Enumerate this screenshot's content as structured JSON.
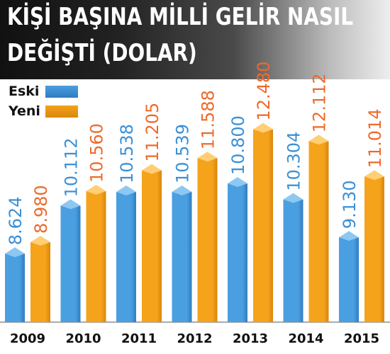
{
  "title": {
    "line1": "KİŞİ BAŞINA MİLLİ GELİR NASIL",
    "line2": "DEĞİŞTİ (DOLAR)"
  },
  "colors": {
    "eski": "#4a9fe0",
    "eski_dark": "#2f7cc0",
    "yeni": "#f5a31b",
    "yeni_dark": "#d9860c",
    "label_eski": "#3a90d6",
    "label_yeni": "#ee6a2b"
  },
  "chart_data": {
    "type": "bar",
    "categories": [
      "2009",
      "2010",
      "2011",
      "2012",
      "2013",
      "2014",
      "2015"
    ],
    "series": [
      {
        "name": "Eski",
        "values": [
          8624,
          10112,
          10538,
          10539,
          10800,
          10304,
          9130
        ]
      },
      {
        "name": "Yeni",
        "values": [
          8980,
          10560,
          11205,
          11588,
          12480,
          12112,
          11014
        ]
      }
    ],
    "data_labels": [
      [
        "8.624",
        "10.112",
        "10.538",
        "10.539",
        "10.800",
        "10.304",
        "9.130"
      ],
      [
        "8.980",
        "10.560",
        "11.205",
        "11.588",
        "12.480",
        "12.112",
        "11.014"
      ]
    ],
    "legend": [
      "Eski",
      "Yeni"
    ],
    "legend_position": "top-left",
    "ylim": [
      6500,
      12800
    ],
    "grid": false
  }
}
